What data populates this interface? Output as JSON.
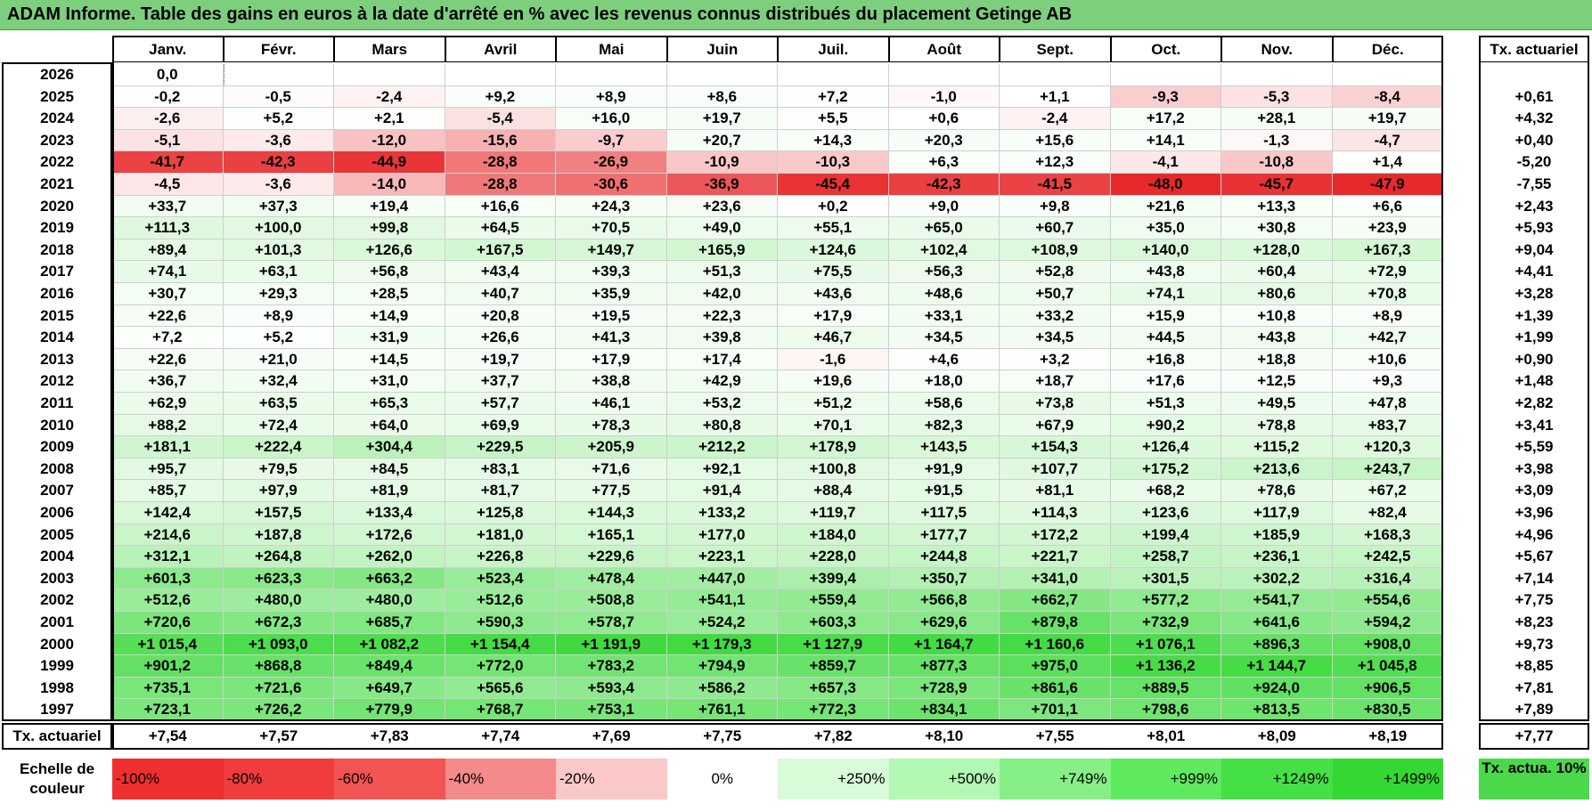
{
  "title": "ADAM Informe. Table des gains en euros à la date d'arrêté en % avec les revenus connus distribués du placement Getinge AB",
  "months": [
    "Janv.",
    "Févr.",
    "Mars",
    "Avril",
    "Mai",
    "Juin",
    "Juil.",
    "Août",
    "Sept.",
    "Oct.",
    "Nov.",
    "Déc."
  ],
  "tx_header": "Tx. actuariel",
  "rows": [
    {
      "year": "2026",
      "values": [
        "0,0",
        "",
        "",
        "",
        "",
        "",
        "",
        "",
        "",
        "",
        "",
        ""
      ],
      "tx": ""
    },
    {
      "year": "2025",
      "values": [
        "-0,2",
        "-0,5",
        "-2,4",
        "+9,2",
        "+8,9",
        "+8,6",
        "+7,2",
        "-1,0",
        "+1,1",
        "-9,3",
        "-5,3",
        "-8,4"
      ],
      "tx": "+0,61"
    },
    {
      "year": "2024",
      "values": [
        "-2,6",
        "+5,2",
        "+2,1",
        "-5,4",
        "+16,0",
        "+19,7",
        "+5,5",
        "+0,6",
        "-2,4",
        "+17,2",
        "+28,1",
        "+19,7"
      ],
      "tx": "+4,32"
    },
    {
      "year": "2023",
      "values": [
        "-5,1",
        "-3,6",
        "-12,0",
        "-15,6",
        "-9,7",
        "+20,7",
        "+14,3",
        "+20,3",
        "+15,6",
        "+14,1",
        "-1,3",
        "-4,7"
      ],
      "tx": "+0,40"
    },
    {
      "year": "2022",
      "values": [
        "-41,7",
        "-42,3",
        "-44,9",
        "-28,8",
        "-26,9",
        "-10,9",
        "-10,3",
        "+6,3",
        "+12,3",
        "-4,1",
        "-10,8",
        "+1,4"
      ],
      "tx": "-5,20"
    },
    {
      "year": "2021",
      "values": [
        "-4,5",
        "-3,6",
        "-14,0",
        "-28,8",
        "-30,6",
        "-36,9",
        "-45,4",
        "-42,3",
        "-41,5",
        "-48,0",
        "-45,7",
        "-47,9"
      ],
      "tx": "-7,55"
    },
    {
      "year": "2020",
      "values": [
        "+33,7",
        "+37,3",
        "+19,4",
        "+16,6",
        "+24,3",
        "+23,6",
        "+0,2",
        "+9,0",
        "+9,8",
        "+21,6",
        "+13,3",
        "+6,6"
      ],
      "tx": "+2,43"
    },
    {
      "year": "2019",
      "values": [
        "+111,3",
        "+100,0",
        "+99,8",
        "+64,5",
        "+70,5",
        "+49,0",
        "+55,1",
        "+65,0",
        "+60,7",
        "+35,0",
        "+30,8",
        "+23,9"
      ],
      "tx": "+5,93"
    },
    {
      "year": "2018",
      "values": [
        "+89,4",
        "+101,3",
        "+126,6",
        "+167,5",
        "+149,7",
        "+165,9",
        "+124,6",
        "+102,4",
        "+108,9",
        "+140,0",
        "+128,0",
        "+167,3"
      ],
      "tx": "+9,04"
    },
    {
      "year": "2017",
      "values": [
        "+74,1",
        "+63,1",
        "+56,8",
        "+43,4",
        "+39,3",
        "+51,3",
        "+75,5",
        "+56,3",
        "+52,8",
        "+43,8",
        "+60,4",
        "+72,9"
      ],
      "tx": "+4,41"
    },
    {
      "year": "2016",
      "values": [
        "+30,7",
        "+29,3",
        "+28,5",
        "+40,7",
        "+35,9",
        "+42,0",
        "+43,6",
        "+48,6",
        "+50,7",
        "+74,1",
        "+80,6",
        "+70,8"
      ],
      "tx": "+3,28"
    },
    {
      "year": "2015",
      "values": [
        "+22,6",
        "+8,9",
        "+14,9",
        "+20,8",
        "+19,5",
        "+22,3",
        "+17,9",
        "+33,1",
        "+33,2",
        "+15,9",
        "+10,8",
        "+8,9"
      ],
      "tx": "+1,39"
    },
    {
      "year": "2014",
      "values": [
        "+7,2",
        "+5,2",
        "+31,9",
        "+26,6",
        "+41,3",
        "+39,8",
        "+46,7",
        "+34,5",
        "+34,5",
        "+44,5",
        "+43,8",
        "+42,7"
      ],
      "tx": "+1,99"
    },
    {
      "year": "2013",
      "values": [
        "+22,6",
        "+21,0",
        "+14,5",
        "+19,7",
        "+17,9",
        "+17,4",
        "-1,6",
        "+4,6",
        "+3,2",
        "+16,8",
        "+18,8",
        "+10,6"
      ],
      "tx": "+0,90"
    },
    {
      "year": "2012",
      "values": [
        "+36,7",
        "+32,4",
        "+31,0",
        "+37,7",
        "+38,8",
        "+42,9",
        "+19,6",
        "+18,0",
        "+18,7",
        "+17,6",
        "+12,5",
        "+9,3"
      ],
      "tx": "+1,48"
    },
    {
      "year": "2011",
      "values": [
        "+62,9",
        "+63,5",
        "+65,3",
        "+57,7",
        "+46,1",
        "+53,2",
        "+51,2",
        "+58,6",
        "+73,8",
        "+51,3",
        "+49,5",
        "+47,8"
      ],
      "tx": "+2,82"
    },
    {
      "year": "2010",
      "values": [
        "+88,2",
        "+72,4",
        "+64,0",
        "+69,9",
        "+78,3",
        "+80,8",
        "+70,1",
        "+82,3",
        "+67,9",
        "+90,2",
        "+78,8",
        "+83,7"
      ],
      "tx": "+3,41"
    },
    {
      "year": "2009",
      "values": [
        "+181,1",
        "+222,4",
        "+304,4",
        "+229,5",
        "+205,9",
        "+212,2",
        "+178,9",
        "+143,5",
        "+154,3",
        "+126,4",
        "+115,2",
        "+120,3"
      ],
      "tx": "+5,59"
    },
    {
      "year": "2008",
      "values": [
        "+95,7",
        "+79,5",
        "+84,5",
        "+83,1",
        "+71,6",
        "+92,1",
        "+100,8",
        "+91,9",
        "+107,7",
        "+175,2",
        "+213,6",
        "+243,7"
      ],
      "tx": "+3,98"
    },
    {
      "year": "2007",
      "values": [
        "+85,7",
        "+97,9",
        "+81,9",
        "+81,7",
        "+77,5",
        "+91,4",
        "+88,4",
        "+91,5",
        "+81,1",
        "+68,2",
        "+78,6",
        "+67,2"
      ],
      "tx": "+3,09"
    },
    {
      "year": "2006",
      "values": [
        "+142,4",
        "+157,5",
        "+133,4",
        "+125,8",
        "+144,3",
        "+133,2",
        "+119,7",
        "+117,5",
        "+114,3",
        "+123,6",
        "+117,9",
        "+82,4"
      ],
      "tx": "+3,96"
    },
    {
      "year": "2005",
      "values": [
        "+214,6",
        "+187,8",
        "+172,6",
        "+181,0",
        "+165,1",
        "+177,0",
        "+184,0",
        "+177,7",
        "+172,2",
        "+199,4",
        "+185,9",
        "+168,3"
      ],
      "tx": "+4,96"
    },
    {
      "year": "2004",
      "values": [
        "+312,1",
        "+264,8",
        "+262,0",
        "+226,8",
        "+229,6",
        "+223,1",
        "+228,0",
        "+244,8",
        "+221,7",
        "+258,7",
        "+236,1",
        "+242,5"
      ],
      "tx": "+5,67"
    },
    {
      "year": "2003",
      "values": [
        "+601,3",
        "+623,3",
        "+663,2",
        "+523,4",
        "+478,4",
        "+447,0",
        "+399,4",
        "+350,7",
        "+341,0",
        "+301,5",
        "+302,2",
        "+316,4"
      ],
      "tx": "+7,14"
    },
    {
      "year": "2002",
      "values": [
        "+512,6",
        "+480,0",
        "+480,0",
        "+512,6",
        "+508,8",
        "+541,1",
        "+559,4",
        "+566,8",
        "+662,7",
        "+577,2",
        "+541,7",
        "+554,6"
      ],
      "tx": "+7,75"
    },
    {
      "year": "2001",
      "values": [
        "+720,6",
        "+672,3",
        "+685,7",
        "+590,3",
        "+578,7",
        "+524,2",
        "+603,3",
        "+629,6",
        "+879,8",
        "+732,9",
        "+641,6",
        "+594,2"
      ],
      "tx": "+8,23"
    },
    {
      "year": "2000",
      "values": [
        "+1 015,4",
        "+1 093,0",
        "+1 082,2",
        "+1 154,4",
        "+1 191,9",
        "+1 179,3",
        "+1 127,9",
        "+1 164,7",
        "+1 160,6",
        "+1 076,1",
        "+896,3",
        "+908,0"
      ],
      "tx": "+9,73"
    },
    {
      "year": "1999",
      "values": [
        "+901,2",
        "+868,8",
        "+849,4",
        "+772,0",
        "+783,2",
        "+794,9",
        "+859,7",
        "+877,3",
        "+975,0",
        "+1 136,2",
        "+1 144,7",
        "+1 045,8"
      ],
      "tx": "+8,85"
    },
    {
      "year": "1998",
      "values": [
        "+735,1",
        "+721,6",
        "+649,7",
        "+565,6",
        "+593,4",
        "+586,2",
        "+657,3",
        "+728,9",
        "+861,6",
        "+889,5",
        "+924,0",
        "+906,5"
      ],
      "tx": "+7,81"
    },
    {
      "year": "1997",
      "values": [
        "+723,1",
        "+726,2",
        "+779,9",
        "+768,7",
        "+753,1",
        "+761,1",
        "+772,3",
        "+834,1",
        "+701,1",
        "+798,6",
        "+813,5",
        "+830,5"
      ],
      "tx": "+7,89"
    }
  ],
  "summary": {
    "label": "Tx. actuariel",
    "values": [
      "+7,54",
      "+7,57",
      "+7,83",
      "+7,74",
      "+7,69",
      "+7,75",
      "+7,82",
      "+8,10",
      "+7,55",
      "+8,01",
      "+8,09",
      "+8,19"
    ],
    "tx": "+7,77"
  },
  "scale": {
    "label": "Echelle de couleur",
    "items": [
      {
        "text": "-100%",
        "color": "#ee2f2f",
        "align": "left"
      },
      {
        "text": "-80%",
        "color": "#f03c3c",
        "align": "left"
      },
      {
        "text": "-60%",
        "color": "#f25353",
        "align": "left"
      },
      {
        "text": "-40%",
        "color": "#f58a8a",
        "align": "left"
      },
      {
        "text": "-20%",
        "color": "#fbc8c8",
        "align": "left"
      },
      {
        "text": "0%",
        "color": "#ffffff",
        "align": "center"
      },
      {
        "text": "+250%",
        "color": "#d8fbd8",
        "align": "right"
      },
      {
        "text": "+500%",
        "color": "#b2f7b2",
        "align": "right"
      },
      {
        "text": "+749%",
        "color": "#86f086",
        "align": "right"
      },
      {
        "text": "+999%",
        "color": "#5ee95e",
        "align": "right"
      },
      {
        "text": "+1249%",
        "color": "#45e045",
        "align": "right"
      },
      {
        "text": "+1499%",
        "color": "#33d833",
        "align": "right"
      }
    ],
    "tx_label": "Tx. actua. 10%",
    "tx_color": "#4bd94b"
  },
  "colors": {
    "title_bg": "#7dcf7d",
    "negative_full": "#e8292b",
    "positive_full": "#33d833"
  }
}
